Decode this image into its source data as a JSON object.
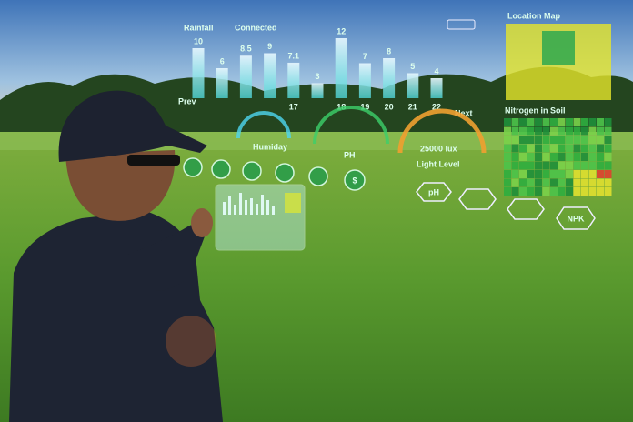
{
  "status_bar": {
    "rainfall": "Rainfall",
    "connected": "Connected"
  },
  "rainfall_chart": {
    "values": [
      10,
      6,
      8.5,
      9,
      7.1,
      3,
      12,
      7,
      8,
      5,
      4
    ],
    "x_labels": [
      null,
      null,
      null,
      null,
      "17",
      null,
      "18",
      "19",
      "20",
      "21",
      "22"
    ],
    "prev": "Prev",
    "next": "Next"
  },
  "gauges": [
    {
      "label": "Humiday"
    },
    {
      "label": "PH"
    },
    {
      "value_text": "25000 lux",
      "label": "Light Level"
    }
  ],
  "location_map": {
    "title": "Location Map"
  },
  "nitrogen_map": {
    "title": "Nitrogen in Soil"
  },
  "app_icons": {
    "dollar": "$"
  },
  "sensors": {
    "ph": "pH",
    "npk": "NPK"
  }
}
